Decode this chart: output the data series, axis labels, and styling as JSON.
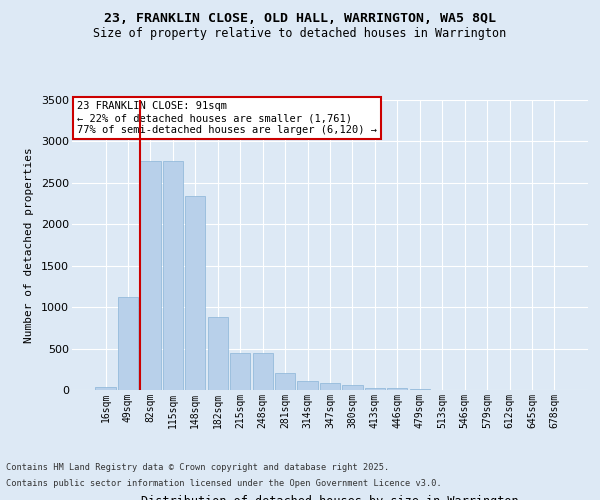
{
  "title1": "23, FRANKLIN CLOSE, OLD HALL, WARRINGTON, WA5 8QL",
  "title2": "Size of property relative to detached houses in Warrington",
  "xlabel": "Distribution of detached houses by size in Warrington",
  "ylabel": "Number of detached properties",
  "categories": [
    "16sqm",
    "49sqm",
    "82sqm",
    "115sqm",
    "148sqm",
    "182sqm",
    "215sqm",
    "248sqm",
    "281sqm",
    "314sqm",
    "347sqm",
    "380sqm",
    "413sqm",
    "446sqm",
    "479sqm",
    "513sqm",
    "546sqm",
    "579sqm",
    "612sqm",
    "645sqm",
    "678sqm"
  ],
  "values": [
    40,
    1120,
    2760,
    2760,
    2340,
    880,
    450,
    450,
    210,
    105,
    90,
    65,
    30,
    25,
    12,
    0,
    0,
    0,
    0,
    0,
    0
  ],
  "bar_color": "#b8d0ea",
  "bar_edgecolor": "#8ab4d8",
  "subject_line_color": "#cc0000",
  "subject_line_xindex": 2,
  "annotation_title": "23 FRANKLIN CLOSE: 91sqm",
  "annotation_line1": "← 22% of detached houses are smaller (1,761)",
  "annotation_line2": "77% of semi-detached houses are larger (6,120) →",
  "annotation_box_edgecolor": "#cc0000",
  "bg_color": "#dde9f5",
  "plot_bg_color": "#dde9f5",
  "grid_color": "#ffffff",
  "ylim": [
    0,
    3500
  ],
  "yticks": [
    0,
    500,
    1000,
    1500,
    2000,
    2500,
    3000,
    3500
  ],
  "footer1": "Contains HM Land Registry data © Crown copyright and database right 2025.",
  "footer2": "Contains public sector information licensed under the Open Government Licence v3.0."
}
